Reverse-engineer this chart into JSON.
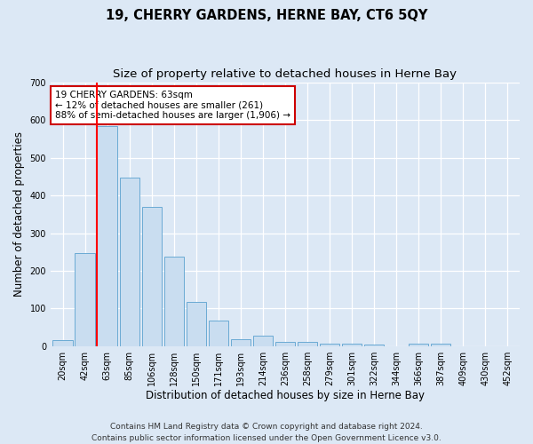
{
  "title": "19, CHERRY GARDENS, HERNE BAY, CT6 5QY",
  "subtitle": "Size of property relative to detached houses in Herne Bay",
  "xlabel": "Distribution of detached houses by size in Herne Bay",
  "ylabel": "Number of detached properties",
  "categories": [
    "20sqm",
    "42sqm",
    "63sqm",
    "85sqm",
    "106sqm",
    "128sqm",
    "150sqm",
    "171sqm",
    "193sqm",
    "214sqm",
    "236sqm",
    "258sqm",
    "279sqm",
    "301sqm",
    "322sqm",
    "344sqm",
    "366sqm",
    "387sqm",
    "409sqm",
    "430sqm",
    "452sqm"
  ],
  "values": [
    15,
    248,
    585,
    448,
    370,
    237,
    118,
    68,
    18,
    28,
    10,
    10,
    6,
    6,
    5,
    0,
    6,
    6,
    0,
    0,
    0
  ],
  "bar_color": "#c9ddf0",
  "bar_edge_color": "#6aaad4",
  "red_line_index": 2,
  "marker_label": "19 CHERRY GARDENS: 63sqm",
  "marker_line1": "← 12% of detached houses are smaller (261)",
  "marker_line2": "88% of semi-detached houses are larger (1,906) →",
  "ylim": [
    0,
    700
  ],
  "yticks": [
    0,
    100,
    200,
    300,
    400,
    500,
    600,
    700
  ],
  "footer_line1": "Contains HM Land Registry data © Crown copyright and database right 2024.",
  "footer_line2": "Contains public sector information licensed under the Open Government Licence v3.0.",
  "bg_color": "#dce8f5",
  "plot_bg_color": "#dce8f5",
  "annotation_box_color": "#ffffff",
  "annotation_box_edge": "#cc0000",
  "title_fontsize": 10.5,
  "subtitle_fontsize": 9.5,
  "axis_label_fontsize": 8.5,
  "tick_fontsize": 7,
  "footer_fontsize": 6.5,
  "annotation_fontsize": 7.5
}
